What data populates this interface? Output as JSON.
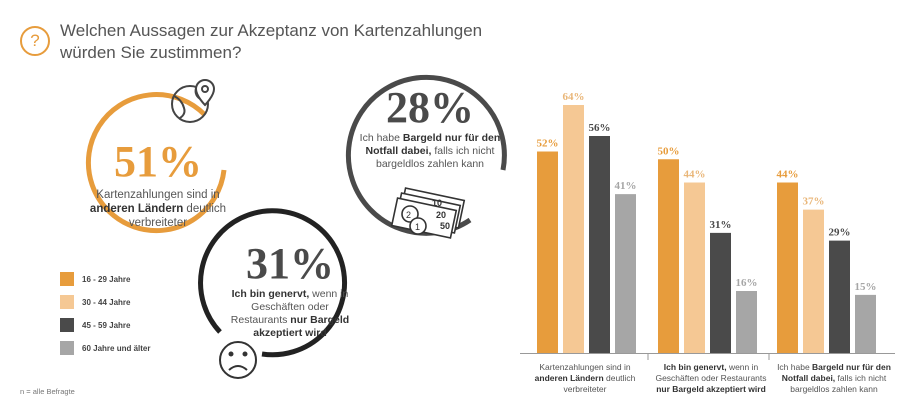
{
  "header": {
    "title_line1": "Welchen Aussagen zur Akzeptanz von Kartenzahlungen",
    "title_line2": "würden Sie zustimmen?"
  },
  "circles": [
    {
      "value": "51%",
      "text_pre": "Kartenzahlungen sind in ",
      "text_bold": "anderen Ländern",
      "text_post": " deutlich verbreiteter"
    },
    {
      "value": "28%",
      "text_pre": "Ich habe ",
      "text_bold": "Bargeld nur für den Notfall dabei,",
      "text_post": " falls ich nicht bargeldlos zahlen kann"
    },
    {
      "value": "31%",
      "text_bold1": "Ich bin genervt,",
      "text_mid": " wenn in Geschäften oder Restaurants ",
      "text_bold2": "nur Bargeld akzeptiert wird"
    }
  ],
  "legend": [
    {
      "label": "16 - 29 Jahre",
      "color": "#e79c3c"
    },
    {
      "label": "30 - 44 Jahre",
      "color": "#f5c894"
    },
    {
      "label": "45 - 59 Jahre",
      "color": "#4a4a4a"
    },
    {
      "label": "60 Jahre und älter",
      "color": "#a6a6a6"
    }
  ],
  "footnote": "n = alle Befragte",
  "chart_data": {
    "type": "bar",
    "categories": [
      "Kartenzahlungen sind in anderen Ländern deutlich verbreiteter",
      "Ich bin genervt, wenn in Geschäften oder Restaurants nur Bargeld akzeptiert wird",
      "Ich habe Bargeld nur für den Notfall dabei, falls ich nicht bargeldlos zahlen kann"
    ],
    "series": [
      {
        "name": "16 - 29 Jahre",
        "values": [
          52,
          50,
          44
        ],
        "labels": [
          "52%",
          "50%",
          "44%"
        ],
        "color": "#e79c3c"
      },
      {
        "name": "30 - 44 Jahre",
        "values": [
          64,
          44,
          37
        ],
        "labels": [
          "64%",
          "44%",
          "37%"
        ],
        "color": "#f5c894"
      },
      {
        "name": "45 - 59 Jahre",
        "values": [
          56,
          31,
          29
        ],
        "labels": [
          "56%",
          "31%",
          "29%"
        ],
        "color": "#4a4a4a"
      },
      {
        "name": "60 Jahre und älter",
        "values": [
          41,
          16,
          15
        ],
        "labels": [
          "41%",
          "16%",
          "15%"
        ],
        "color": "#a6a6a6"
      }
    ],
    "ylim": [
      0,
      64
    ],
    "unit": "%",
    "grid": false
  }
}
